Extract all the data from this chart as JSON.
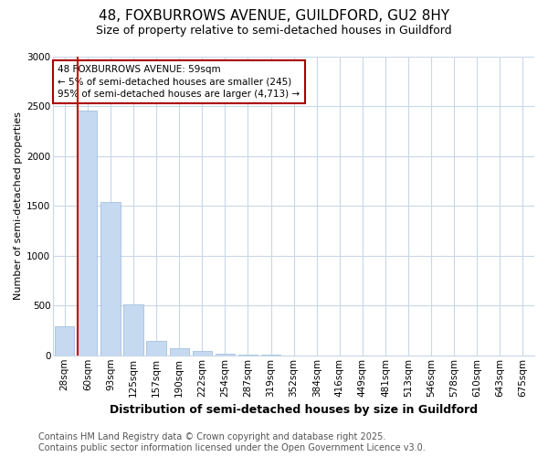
{
  "title_line1": "48, FOXBURROWS AVENUE, GUILDFORD, GU2 8HY",
  "title_line2": "Size of property relative to semi-detached houses in Guildford",
  "xlabel": "Distribution of semi-detached houses by size in Guildford",
  "ylabel": "Number of semi-detached properties",
  "categories": [
    "28sqm",
    "60sqm",
    "93sqm",
    "125sqm",
    "157sqm",
    "190sqm",
    "222sqm",
    "254sqm",
    "287sqm",
    "319sqm",
    "352sqm",
    "384sqm",
    "416sqm",
    "449sqm",
    "481sqm",
    "513sqm",
    "546sqm",
    "578sqm",
    "610sqm",
    "643sqm",
    "675sqm"
  ],
  "values": [
    290,
    2450,
    1540,
    510,
    140,
    75,
    40,
    20,
    5,
    3,
    2,
    1,
    1,
    0,
    0,
    0,
    0,
    0,
    0,
    0,
    0
  ],
  "bar_color": "#c5d9f0",
  "bar_edge_color": "#9ab8d8",
  "subject_line_color": "#cc0000",
  "annotation_box_edge_color": "#aa0000",
  "annotation_label": "48 FOXBURROWS AVENUE: 59sqm",
  "annotation_line1": "← 5% of semi-detached houses are smaller (245)",
  "annotation_line2": "95% of semi-detached houses are larger (4,713) →",
  "ylim": [
    0,
    3000
  ],
  "yticks": [
    0,
    500,
    1000,
    1500,
    2000,
    2500,
    3000
  ],
  "background_color": "#ffffff",
  "plot_bg_color": "#ffffff",
  "grid_color": "#c8d8e8",
  "title_fontsize": 11,
  "subtitle_fontsize": 9,
  "xlabel_fontsize": 9,
  "ylabel_fontsize": 8,
  "tick_fontsize": 7.5,
  "annotation_fontsize": 7.5,
  "footer_fontsize": 7,
  "footer_line1": "Contains HM Land Registry data © Crown copyright and database right 2025.",
  "footer_line2": "Contains public sector information licensed under the Open Government Licence v3.0."
}
